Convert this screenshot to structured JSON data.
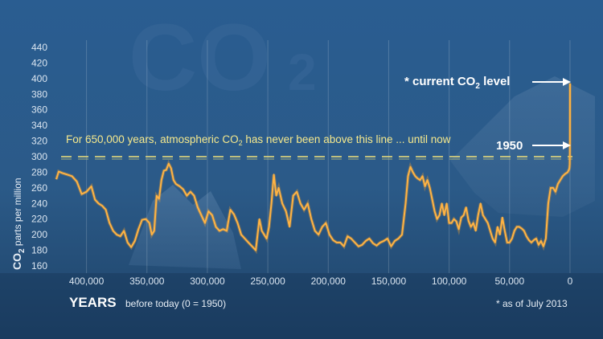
{
  "watermark": "CO2",
  "chart_data": {
    "type": "line",
    "ylabel": "CO2 parts per million",
    "ylim": [
      160,
      440
    ],
    "yticks": [
      160,
      180,
      200,
      220,
      240,
      260,
      280,
      300,
      320,
      340,
      360,
      380,
      400,
      420,
      440
    ],
    "xlim": [
      425000,
      -10000
    ],
    "xticks": [
      400000,
      350000,
      300000,
      250000,
      200000,
      150000,
      100000,
      50000,
      0
    ],
    "xtick_labels": [
      "400,000",
      "350,000",
      "300,000",
      "250,000",
      "200,000",
      "150,000",
      "100,000",
      "50,000",
      "0"
    ],
    "xlabel_main": "YEARS",
    "xlabel_sub": "before today (0 = 1950)",
    "threshold": 300,
    "threshold_text": "For 650,000 years, atmospheric CO2 has never been above this line ... until now",
    "annotations": {
      "current_label": "* current CO2 level",
      "current_value": 394,
      "year_1950_label": "1950",
      "year_1950_value": 300,
      "footnote": "* as of July 2013"
    },
    "line_color": "#f0a030",
    "threshold_color": "#f2e27a",
    "series": [
      {
        "x": [
          425000,
          423000,
          420000,
          416000,
          412000,
          408000,
          404000,
          400000,
          396000,
          393000,
          390000,
          387000,
          384000,
          381000,
          378000,
          375000,
          372000,
          369000,
          366000,
          363000,
          360000,
          357000,
          354000,
          351000,
          348000,
          346000,
          344000,
          342000,
          340000,
          338000,
          336000,
          334000,
          332000,
          330000,
          328000,
          326000,
          323000,
          320000,
          317000,
          314000,
          311000,
          308000,
          305000,
          302000,
          299000,
          296000,
          293000,
          290000,
          287000,
          284000,
          281000,
          278000,
          275000,
          272000,
          269000,
          266000,
          263000,
          260000,
          257000,
          255000,
          253000,
          251000,
          249000,
          247000,
          245000,
          243000,
          241000,
          238000,
          235000,
          232000,
          229000,
          226000,
          223000,
          220000,
          217000,
          214000,
          211000,
          208000,
          205000,
          202000,
          199000,
          196000,
          193000,
          190000,
          187000,
          184000,
          181000,
          178000,
          175000,
          172000,
          169000,
          166000,
          163000,
          160000,
          157000,
          154000,
          151000,
          148000,
          145000,
          142000,
          139000,
          136000,
          134000,
          132000,
          130000,
          128000,
          126000,
          124000,
          122000,
          120000,
          118000,
          116000,
          114000,
          112000,
          110000,
          108000,
          106000,
          104000,
          102000,
          100000,
          98000,
          96000,
          94000,
          92000,
          90000,
          88000,
          86000,
          84000,
          82000,
          80000,
          78000,
          76000,
          74000,
          72000,
          70000,
          68000,
          66000,
          64000,
          62000,
          60000,
          58000,
          56000,
          54000,
          52000,
          50000,
          48000,
          46000,
          44000,
          42000,
          40000,
          38000,
          36000,
          34000,
          32000,
          30000,
          28000,
          26000,
          24000,
          22000,
          20000,
          18000,
          16000,
          14000,
          12000,
          10000,
          8000,
          6000,
          4000,
          2000,
          1000,
          500,
          250,
          100,
          50,
          0
        ],
        "values": [
          271,
          281,
          279,
          277,
          275,
          268,
          252,
          255,
          262,
          245,
          240,
          237,
          232,
          215,
          205,
          200,
          198,
          205,
          190,
          184,
          192,
          207,
          219,
          220,
          215,
          200,
          205,
          250,
          246,
          270,
          282,
          283,
          291,
          285,
          270,
          265,
          262,
          258,
          250,
          255,
          250,
          235,
          225,
          215,
          230,
          225,
          210,
          205,
          207,
          205,
          232,
          226,
          215,
          200,
          195,
          190,
          185,
          180,
          220,
          205,
          200,
          195,
          210,
          240,
          277,
          250,
          260,
          240,
          230,
          210,
          250,
          255,
          240,
          232,
          240,
          220,
          205,
          200,
          210,
          215,
          200,
          193,
          190,
          190,
          185,
          198,
          195,
          190,
          185,
          187,
          192,
          195,
          189,
          186,
          190,
          192,
          195,
          185,
          192,
          195,
          200,
          240,
          275,
          287,
          280,
          275,
          272,
          270,
          275,
          262,
          270,
          260,
          245,
          230,
          220,
          225,
          240,
          225,
          240,
          215,
          215,
          220,
          217,
          207,
          222,
          225,
          235,
          218,
          210,
          215,
          205,
          225,
          240,
          225,
          220,
          215,
          205,
          195,
          190,
          210,
          200,
          222,
          205,
          190,
          190,
          195,
          205,
          210,
          210,
          208,
          205,
          198,
          193,
          190,
          193,
          195,
          187,
          192,
          185,
          195,
          240,
          260,
          260,
          255,
          265,
          270,
          275,
          278,
          280,
          283,
          285,
          290,
          305,
          320,
          394
        ],
        "_": "values"
      }
    ]
  }
}
